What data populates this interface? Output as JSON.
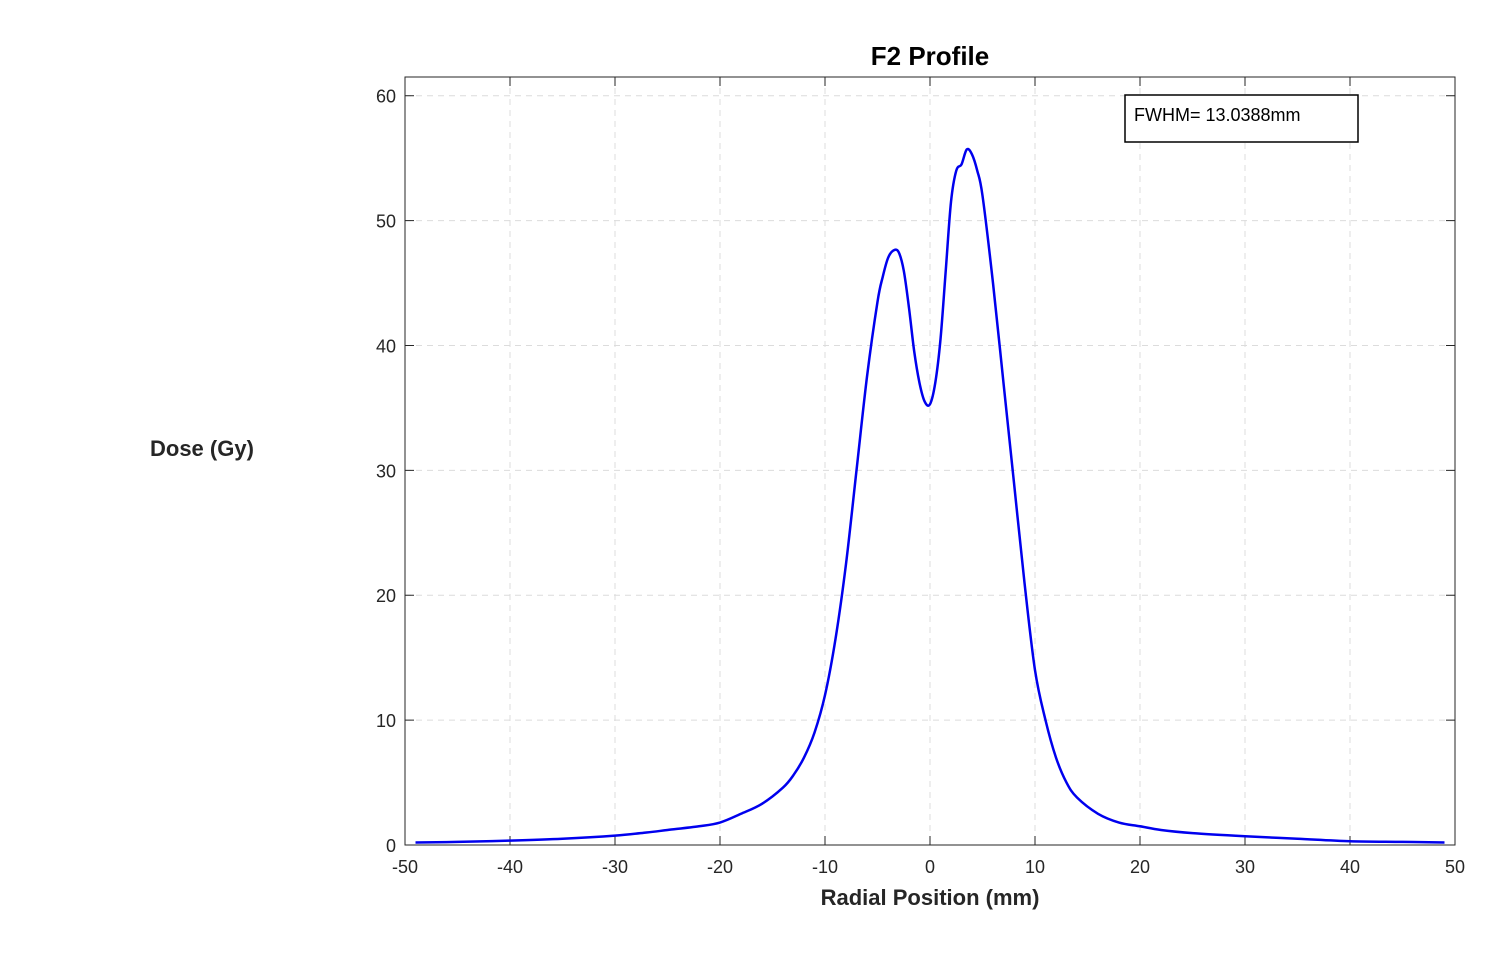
{
  "chart_data": {
    "type": "line",
    "title": "F2 Profile",
    "xlabel": "Radial Position (mm)",
    "ylabel": "Dose (Gy)",
    "xlim": [
      -50,
      50
    ],
    "ylim": [
      0,
      61.5
    ],
    "xticks": [
      -50,
      -40,
      -30,
      -20,
      -10,
      0,
      10,
      20,
      30,
      40,
      50
    ],
    "yticks": [
      0,
      10,
      20,
      30,
      40,
      50,
      60
    ],
    "grid": true,
    "annotation": "FWHM= 13.0388mm",
    "annotation_position": "top-right",
    "series": [
      {
        "color": "#0000ee",
        "x": [
          -49,
          -45,
          -40,
          -35,
          -30,
          -27,
          -25,
          -22,
          -20,
          -18,
          -16,
          -14,
          -13,
          -12,
          -11,
          -10,
          -9,
          -8,
          -7,
          -6,
          -5,
          -4.5,
          -4,
          -3.5,
          -3,
          -2.5,
          -2,
          -1.5,
          -1,
          -0.5,
          0,
          0.5,
          1,
          1.5,
          2,
          2.5,
          3,
          3.5,
          4,
          4.5,
          5,
          6,
          7,
          8,
          9,
          10,
          11,
          12,
          13,
          14,
          16,
          18,
          20,
          22,
          25,
          30,
          35,
          40,
          45,
          49
        ],
        "values": [
          0.2,
          0.25,
          0.35,
          0.5,
          0.75,
          1.0,
          1.2,
          1.5,
          1.8,
          2.5,
          3.3,
          4.6,
          5.6,
          7.0,
          9.0,
          12.0,
          16.5,
          22.5,
          30.0,
          37.5,
          43.5,
          45.5,
          47.0,
          47.6,
          47.5,
          46.0,
          43.0,
          39.5,
          37.0,
          35.5,
          35.3,
          37.0,
          40.5,
          46.0,
          51.5,
          54.0,
          54.5,
          55.7,
          55.3,
          54.0,
          52.0,
          45.0,
          37.0,
          29.0,
          21.0,
          14.0,
          10.0,
          7.0,
          5.0,
          3.8,
          2.5,
          1.8,
          1.5,
          1.2,
          0.95,
          0.7,
          0.5,
          0.3,
          0.25,
          0.2
        ]
      }
    ]
  }
}
